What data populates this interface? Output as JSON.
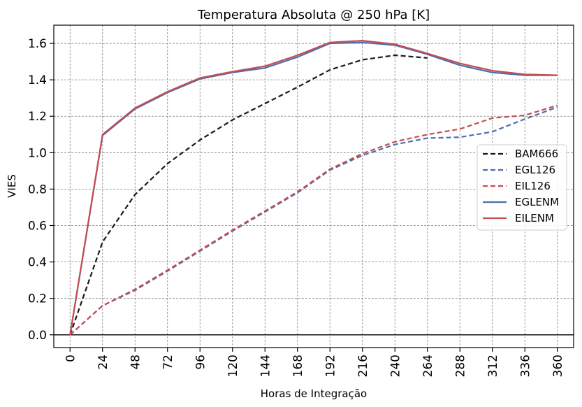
{
  "chart_data": {
    "type": "line",
    "title": "Temperatura Absoluta @ 250 hPa [K]",
    "xlabel": "Horas de Integração",
    "ylabel": "VIES",
    "x": [
      0,
      24,
      48,
      72,
      96,
      120,
      144,
      168,
      192,
      216,
      240,
      264,
      288,
      312,
      336,
      360
    ],
    "x_tick_labels": [
      "0",
      "24",
      "48",
      "72",
      "96",
      "120",
      "144",
      "168",
      "192",
      "216",
      "240",
      "264",
      "288",
      "312",
      "336",
      "360"
    ],
    "y_ticks": [
      0.0,
      0.2,
      0.4,
      0.6,
      0.8,
      1.0,
      1.2,
      1.4,
      1.6
    ],
    "y_tick_labels": [
      "0.0",
      "0.2",
      "0.4",
      "0.6",
      "0.8",
      "1.0",
      "1.2",
      "1.4",
      "1.6"
    ],
    "ylim": [
      -0.07,
      1.7
    ],
    "xlim": [
      -12,
      372
    ],
    "grid": true,
    "zero_line": true,
    "legend_position": "center-right",
    "series": [
      {
        "name": "BAM666",
        "color": "#1a1a1a",
        "style": "dashed",
        "values": [
          0.0,
          0.51,
          0.77,
          0.94,
          1.07,
          1.18,
          1.27,
          1.36,
          1.455,
          1.51,
          1.535,
          1.52,
          null,
          null,
          null,
          null
        ]
      },
      {
        "name": "EGL126",
        "color": "#4c6ead",
        "style": "dashed",
        "values": [
          0.0,
          0.16,
          0.245,
          0.35,
          0.46,
          0.57,
          0.675,
          0.78,
          0.905,
          0.985,
          1.045,
          1.08,
          1.085,
          1.115,
          1.185,
          1.25
        ]
      },
      {
        "name": "EIL126",
        "color": "#c44e52",
        "style": "dashed",
        "values": [
          0.0,
          0.16,
          0.25,
          0.355,
          0.465,
          0.575,
          0.68,
          0.785,
          0.91,
          0.995,
          1.06,
          1.1,
          1.13,
          1.19,
          1.205,
          1.26
        ]
      },
      {
        "name": "EGLENM",
        "color": "#4c6ead",
        "style": "solid",
        "values": [
          0.0,
          1.095,
          1.24,
          1.33,
          1.405,
          1.44,
          1.465,
          1.525,
          1.6,
          1.605,
          1.59,
          1.54,
          1.48,
          1.44,
          1.425,
          1.425
        ]
      },
      {
        "name": "EILENM",
        "color": "#c44e52",
        "style": "solid",
        "values": [
          0.0,
          1.1,
          1.245,
          1.335,
          1.41,
          1.445,
          1.475,
          1.535,
          1.605,
          1.615,
          1.595,
          1.545,
          1.49,
          1.45,
          1.43,
          1.425
        ]
      }
    ]
  }
}
